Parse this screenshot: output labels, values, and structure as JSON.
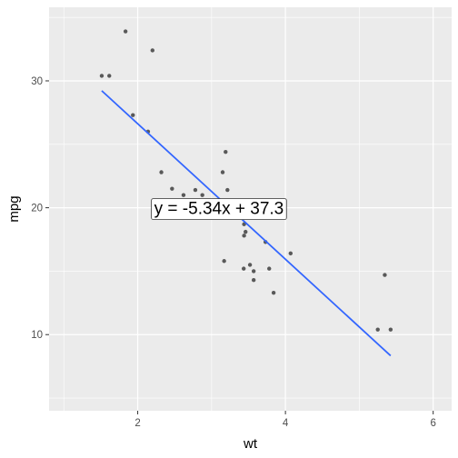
{
  "chart_data": {
    "type": "scatter",
    "xlabel": "wt",
    "ylabel": "mpg",
    "xlim": [
      0.8,
      6.25
    ],
    "ylim": [
      4,
      35.8
    ],
    "x_ticks": [
      2,
      4,
      6
    ],
    "y_ticks": [
      10,
      20,
      30
    ],
    "x_minor_ticks": [
      1,
      3,
      5
    ],
    "y_minor_ticks": [
      5,
      15,
      25,
      35
    ],
    "grid": true,
    "background_color": "#ebebeb",
    "grid_color": "#ffffff",
    "point_color": "#595959",
    "line_color": "#3366ff",
    "points": [
      {
        "x": 1.513,
        "y": 30.4
      },
      {
        "x": 1.615,
        "y": 30.4
      },
      {
        "x": 1.835,
        "y": 33.9
      },
      {
        "x": 1.935,
        "y": 27.3
      },
      {
        "x": 2.14,
        "y": 26.0
      },
      {
        "x": 2.2,
        "y": 32.4
      },
      {
        "x": 2.32,
        "y": 22.8
      },
      {
        "x": 2.465,
        "y": 21.5
      },
      {
        "x": 2.62,
        "y": 21.0
      },
      {
        "x": 2.77,
        "y": 19.7
      },
      {
        "x": 2.78,
        "y": 21.4
      },
      {
        "x": 2.875,
        "y": 21.0
      },
      {
        "x": 3.15,
        "y": 22.8
      },
      {
        "x": 3.17,
        "y": 15.8
      },
      {
        "x": 3.19,
        "y": 24.4
      },
      {
        "x": 3.215,
        "y": 21.4
      },
      {
        "x": 3.435,
        "y": 15.2
      },
      {
        "x": 3.44,
        "y": 18.7
      },
      {
        "x": 3.44,
        "y": 19.2
      },
      {
        "x": 3.44,
        "y": 17.8
      },
      {
        "x": 3.46,
        "y": 18.1
      },
      {
        "x": 3.52,
        "y": 15.5
      },
      {
        "x": 3.57,
        "y": 14.3
      },
      {
        "x": 3.57,
        "y": 15.0
      },
      {
        "x": 3.73,
        "y": 17.3
      },
      {
        "x": 3.78,
        "y": 15.2
      },
      {
        "x": 3.84,
        "y": 13.3
      },
      {
        "x": 3.845,
        "y": 19.2
      },
      {
        "x": 4.07,
        "y": 16.4
      },
      {
        "x": 5.25,
        "y": 10.4
      },
      {
        "x": 5.345,
        "y": 14.7
      },
      {
        "x": 5.424,
        "y": 10.4
      }
    ],
    "fit_line": {
      "slope": -5.34,
      "intercept": 37.3,
      "x_range": [
        1.513,
        5.424
      ]
    },
    "annotation": {
      "text": "y = -5.34x + 37.3",
      "x": 3.1,
      "y": 20
    }
  }
}
